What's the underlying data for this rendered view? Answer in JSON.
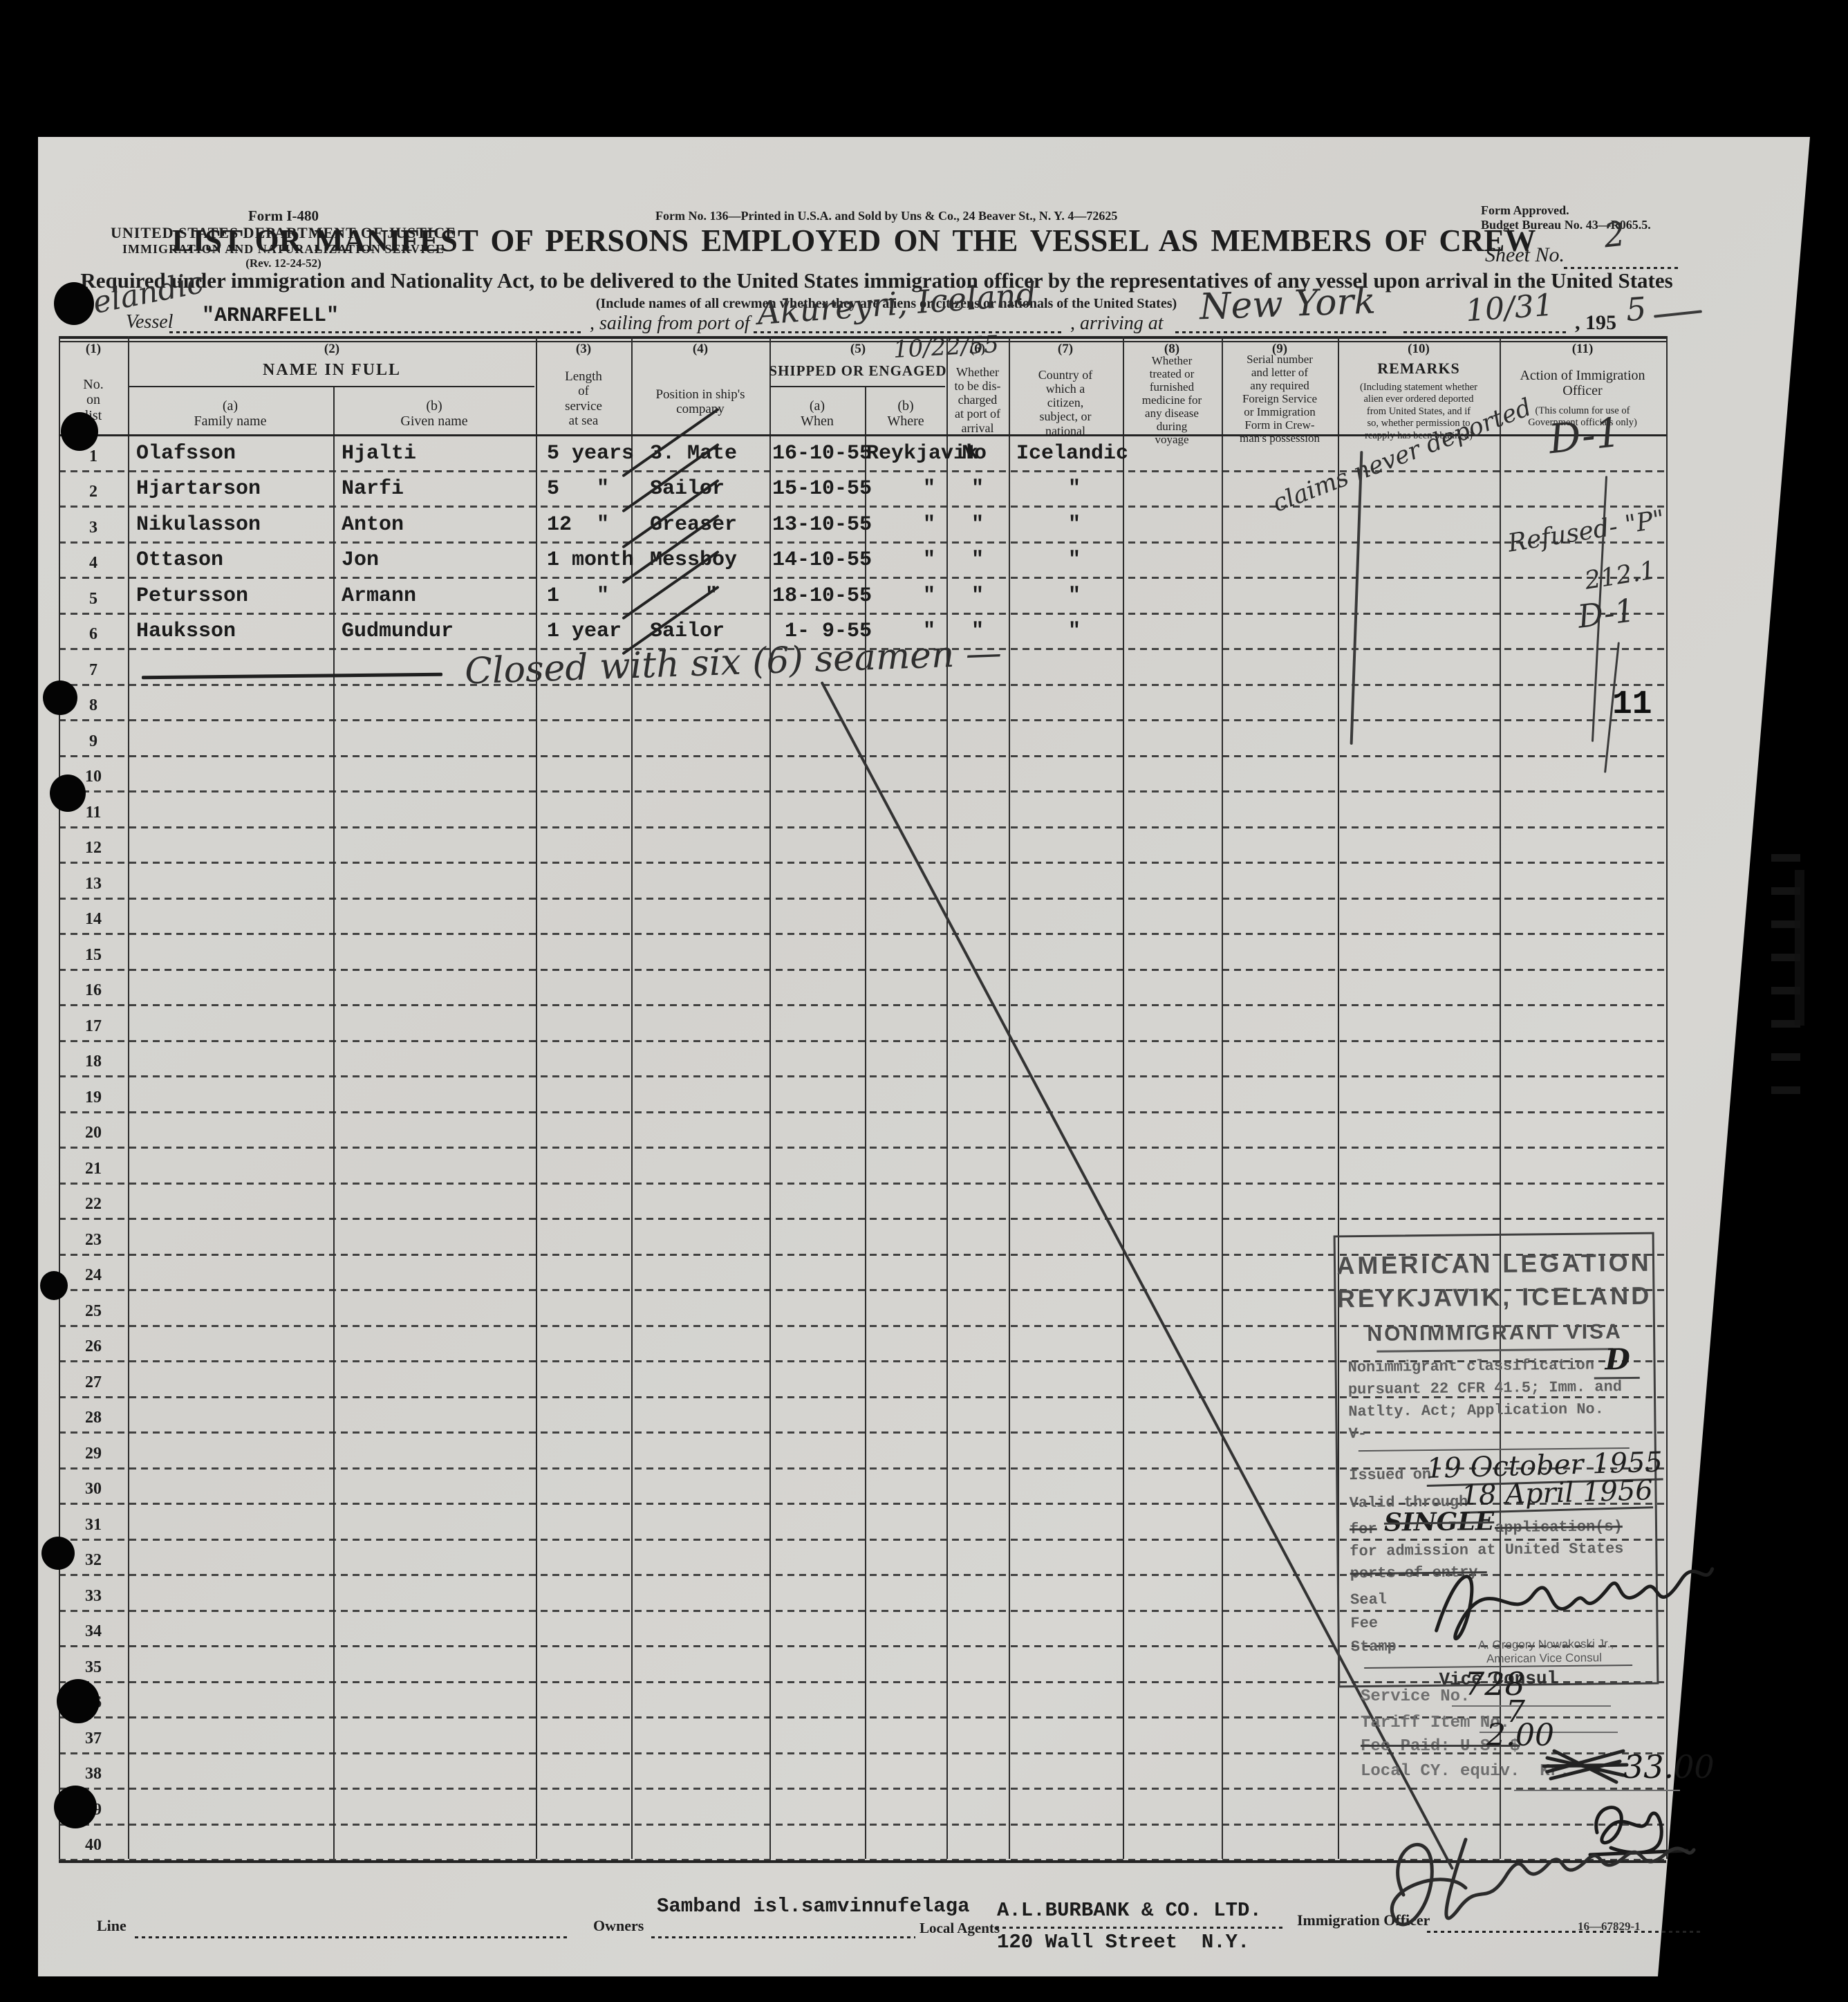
{
  "form": {
    "header_left_1": "Form I-480",
    "header_left_2": "UNITED STATES DEPARTMENT OF JUSTICE",
    "header_left_3": "IMMIGRATION AND NATURALIZATION SERVICE",
    "header_left_4": "(Rev. 12-24-52)",
    "header_center": "Form No. 136—Printed in U.S.A. and Sold by Uns & Co., 24 Beaver St., N. Y. 4—72625",
    "header_right_1": "Form Approved.",
    "header_right_2": "Budget Bureau No. 43—R065.5.",
    "title": "LIST OR MANIFEST OF PERSONS EMPLOYED ON THE VESSEL AS MEMBERS OF CREW",
    "sheet_no_label": "Sheet No.",
    "sheet_no_value": "2",
    "subtitle": "Required under immigration and Nationality Act, to be delivered to the United States immigration officer by the representatives of any vessel upon arrival in the United States",
    "include_note": "(Include names of all crewmen whether they are aliens or citizens or nationals of the United States)",
    "vessel_label": "Vessel",
    "vessel_name": "\"ARNARFELL\"",
    "vessel_nationality_hw": "Icelandic",
    "sailing_label": ", sailing from port of",
    "sailing_port_hw": "Akureyri, Iceland",
    "sailing_date_hw": "10/22/55",
    "arriving_label": ", arriving at",
    "arrival_port_hw": "New York",
    "arrival_date_hw": "10/31",
    "year_printed": ", 195",
    "year_hw": "5"
  },
  "table": {
    "row_count": 40,
    "page_stamp": "11",
    "columns": {
      "c1_num": "(1)",
      "c1": "No.\non\nlist",
      "c2_num": "(2)",
      "c2_group": "NAME IN FULL",
      "c2a": "(a)\nFamily name",
      "c2b": "(b)\nGiven name",
      "c3_num": "(3)",
      "c3": "Length\nof\nservice\nat sea",
      "c4_num": "(4)",
      "c4": "Position in ship's\ncompany",
      "c5_num": "(5)",
      "c5_group": "SHIPPED OR ENGAGED",
      "c5a": "(a)\nWhen",
      "c5b": "(b)\nWhere",
      "c6_num": "(6)",
      "c6": "Whether\nto be dis-\ncharged\nat port of\narrival",
      "c7_num": "(7)",
      "c7": "Country of\nwhich a\ncitizen,\nsubject, or\nnational",
      "c8_num": "(8)",
      "c8": "Whether\ntreated or\nfurnished\nmedicine for\nany disease\nduring\nvoyage",
      "c9_num": "(9)",
      "c9": "Serial number\nand letter of\nany required\nForeign Service\nor Immigration\nForm in Crew-\nman's possession",
      "c10_num": "(10)",
      "c10": "REMARKS",
      "c10_note": "(Including statement whether\nalien ever ordered deported\nfrom United States, and if\nso, whether permission to\nreapply has been obtained)",
      "c11_num": "(11)",
      "c11": "Action of Immigration\nOfficer",
      "c11_note": "(This column for use of\nGovernment officials only)"
    },
    "crew": [
      {
        "no": "1",
        "family": "Olafsson",
        "given": "Hjalti",
        "length": "5 years",
        "position": "3. Mate",
        "when": "16-10-55",
        "where": "Reykjavik",
        "discharged": "No",
        "country": "Icelandic"
      },
      {
        "no": "2",
        "family": "Hjartarson",
        "given": "Narfi",
        "length": "5   \"",
        "position": "Sailor",
        "when": "15-10-55",
        "where": "\"",
        "discharged": "\"",
        "country": "\""
      },
      {
        "no": "3",
        "family": "Nikulasson",
        "given": "Anton",
        "length": "12  \"",
        "position": "Greaser",
        "when": "13-10-55",
        "where": "\"",
        "discharged": "\"",
        "country": "\""
      },
      {
        "no": "4",
        "family": "Ottason",
        "given": "Jon",
        "length": "1 month",
        "position": "Messboy",
        "when": "14-10-55",
        "where": "\"",
        "discharged": "\"",
        "country": "\""
      },
      {
        "no": "5",
        "family": "Petursson",
        "given": "Armann",
        "length": "1   \"",
        "position": "\"",
        "when": "18-10-55",
        "where": "\"",
        "discharged": "\"",
        "country": "\""
      },
      {
        "no": "6",
        "family": "Hauksson",
        "given": "Gudmundur",
        "length": "1 year",
        "position": "Sailor",
        "when": " 1- 9-55",
        "where": "\"",
        "discharged": "\"",
        "country": "\""
      }
    ],
    "closed_note_hw": "Closed with six (6) seamen —"
  },
  "annotations": {
    "remarks_row1_hw": "claims never deported",
    "action_row1_hw": "D-1",
    "action_refused_hw": "Refused- \"P\"",
    "action_refused_code_hw": "212.1",
    "action_row5_hw": "D-1"
  },
  "visa_stamp": {
    "line1": "AMERICAN LEGATION",
    "line2": "REYKJAVIK, ICELAND",
    "line3": "NONIMMIGRANT VISA",
    "class_label": "Nonimmigrant classification",
    "class_value_hw": "D",
    "pursuant1": "pursuant 22 CFR 41.5; Imm. and",
    "pursuant2": "Natlty. Act; Application No.",
    "v_label": "V-",
    "issued_label": "Issued on",
    "issued_value_hw": "19 October 1955",
    "valid_label": "Valid through",
    "valid_value_hw": "18 April 1956",
    "for_label": "for",
    "single_hw": "SINGLE",
    "application_label": "application(s)",
    "admission_line1": "for admission at United States",
    "admission_line2": "ports of entry.",
    "seal_label": "Seal",
    "fee_label": "Fee",
    "stamp_label": "Stamp",
    "signer_name": "A. Gregory Nowakoski Jr.,",
    "signer_title": "American Vice Consul",
    "vice_consul_label": "Vice Consul"
  },
  "service_block": {
    "service_no_label": "Service No.",
    "service_no_value_hw": "728",
    "tariff_label": "Tariff Item No.",
    "tariff_value_hw": "7",
    "fee_label": "Fee Paid: U.S. $",
    "fee_value_hw": "2.00",
    "local_label": "Local CY. equiv.  Kr.",
    "local_value_hw": "33.00"
  },
  "footer": {
    "line_label": "Line",
    "owners_label": "Owners",
    "owners_value": "Samband isl.samvinnufelaga",
    "agents_label": "Local Agents",
    "agents_value1": "A.L.BURBANK & CO. LTD.",
    "agents_value2": "120 Wall Street  N.Y.",
    "officer_label": "Immigration Officer",
    "plate_number": "16—67829-1"
  }
}
